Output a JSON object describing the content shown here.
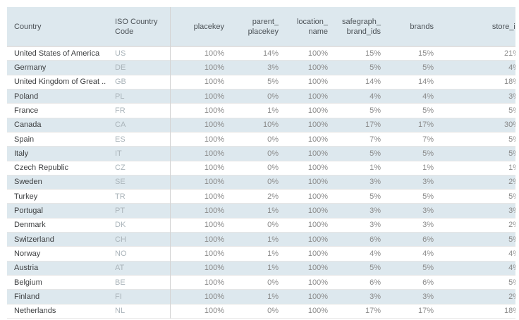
{
  "chart_data": {
    "type": "table",
    "columns": [
      {
        "key": "country",
        "label": "Country"
      },
      {
        "key": "iso-country-code",
        "label": "ISO Country\nCode"
      },
      {
        "key": "placekey",
        "label": "placekey"
      },
      {
        "key": "parent-placekey",
        "label": "parent_\nplacekey"
      },
      {
        "key": "location-name",
        "label": "location_\nname"
      },
      {
        "key": "safegraph-brand-ids",
        "label": "safegraph_\nbrand_ids"
      },
      {
        "key": "brands",
        "label": "brands"
      },
      {
        "key": "store-id",
        "label": "store_id"
      }
    ],
    "rows": [
      [
        "United States of America",
        "US",
        "100%",
        "14%",
        "100%",
        "15%",
        "15%",
        "21%"
      ],
      [
        "Germany",
        "DE",
        "100%",
        "3%",
        "100%",
        "5%",
        "5%",
        "4%"
      ],
      [
        "United Kingdom of Great ..",
        "GB",
        "100%",
        "5%",
        "100%",
        "14%",
        "14%",
        "18%"
      ],
      [
        "Poland",
        "PL",
        "100%",
        "0%",
        "100%",
        "4%",
        "4%",
        "3%"
      ],
      [
        "France",
        "FR",
        "100%",
        "1%",
        "100%",
        "5%",
        "5%",
        "5%"
      ],
      [
        "Canada",
        "CA",
        "100%",
        "10%",
        "100%",
        "17%",
        "17%",
        "30%"
      ],
      [
        "Spain",
        "ES",
        "100%",
        "0%",
        "100%",
        "7%",
        "7%",
        "5%"
      ],
      [
        "Italy",
        "IT",
        "100%",
        "0%",
        "100%",
        "5%",
        "5%",
        "5%"
      ],
      [
        "Czech Republic",
        "CZ",
        "100%",
        "0%",
        "100%",
        "1%",
        "1%",
        "1%"
      ],
      [
        "Sweden",
        "SE",
        "100%",
        "0%",
        "100%",
        "3%",
        "3%",
        "2%"
      ],
      [
        "Turkey",
        "TR",
        "100%",
        "2%",
        "100%",
        "5%",
        "5%",
        "5%"
      ],
      [
        "Portugal",
        "PT",
        "100%",
        "1%",
        "100%",
        "3%",
        "3%",
        "3%"
      ],
      [
        "Denmark",
        "DK",
        "100%",
        "0%",
        "100%",
        "3%",
        "3%",
        "2%"
      ],
      [
        "Switzerland",
        "CH",
        "100%",
        "1%",
        "100%",
        "6%",
        "6%",
        "5%"
      ],
      [
        "Norway",
        "NO",
        "100%",
        "1%",
        "100%",
        "4%",
        "4%",
        "4%"
      ],
      [
        "Austria",
        "AT",
        "100%",
        "1%",
        "100%",
        "5%",
        "5%",
        "4%"
      ],
      [
        "Belgium",
        "BE",
        "100%",
        "0%",
        "100%",
        "6%",
        "6%",
        "5%"
      ],
      [
        "Finland",
        "FI",
        "100%",
        "1%",
        "100%",
        "3%",
        "3%",
        "2%"
      ],
      [
        "Netherlands",
        "NL",
        "100%",
        "0%",
        "100%",
        "17%",
        "17%",
        "18%"
      ]
    ],
    "layout_hints": {
      "banding": "even rows shaded",
      "header_two_line_wrap": true,
      "last_column_clipped_at_right_edge": true
    }
  },
  "colors": {
    "band": "#dde8ee",
    "header_background": "#dde8ee",
    "country_text": "#3d3f41",
    "iso_code_text": "#aab4ba",
    "value_text": "#8a8a8a",
    "header_text": "#4c5257",
    "row_gridline": "#e6e6e6",
    "header_rule": "#c6c6c6",
    "pane_divider": "#d4d4d4",
    "page_background": "#ffffff"
  }
}
